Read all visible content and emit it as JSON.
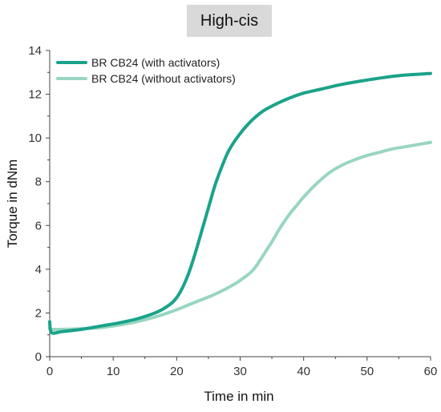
{
  "chart_data": {
    "type": "line",
    "title": "High-cis",
    "xlabel": "Time in min",
    "ylabel": "Torque in dNm",
    "xlim": [
      0,
      60
    ],
    "ylim": [
      0,
      14
    ],
    "x_ticks": [
      "0",
      "10",
      "20",
      "30",
      "40",
      "50",
      "60"
    ],
    "y_ticks": [
      "0",
      "2",
      "4",
      "6",
      "8",
      "10",
      "12",
      "14"
    ],
    "grid": false,
    "legend_position": "top-left",
    "series": [
      {
        "name": "BR CB24 (with activators)",
        "color": "#1aa38a",
        "x": [
          0,
          0.3,
          2,
          5,
          8,
          11,
          14,
          17,
          19,
          20,
          21,
          22,
          23,
          24,
          25,
          26,
          27,
          28,
          29,
          30,
          31,
          32,
          33,
          34,
          36,
          38,
          40,
          43,
          46,
          50,
          55,
          60
        ],
        "y": [
          1.6,
          1.1,
          1.15,
          1.25,
          1.4,
          1.55,
          1.75,
          2.05,
          2.4,
          2.7,
          3.2,
          3.9,
          4.8,
          5.8,
          6.8,
          7.8,
          8.6,
          9.3,
          9.8,
          10.2,
          10.55,
          10.85,
          11.1,
          11.3,
          11.6,
          11.85,
          12.05,
          12.25,
          12.45,
          12.65,
          12.85,
          12.95
        ]
      },
      {
        "name": "BR CB24 (without activators)",
        "color": "#98d6c1",
        "x": [
          0,
          0.3,
          2,
          5,
          8,
          11,
          14,
          17,
          20,
          23,
          26,
          29,
          31,
          32,
          33,
          34,
          35,
          36,
          37,
          38,
          39,
          40,
          42,
          44,
          46,
          48,
          50,
          52,
          54,
          56,
          58,
          60
        ],
        "y": [
          1.3,
          1.25,
          1.25,
          1.28,
          1.33,
          1.45,
          1.62,
          1.85,
          2.15,
          2.5,
          2.85,
          3.3,
          3.7,
          3.95,
          4.35,
          4.8,
          5.25,
          5.75,
          6.2,
          6.6,
          6.95,
          7.3,
          7.9,
          8.4,
          8.75,
          9.0,
          9.2,
          9.35,
          9.5,
          9.6,
          9.7,
          9.8
        ]
      }
    ]
  }
}
